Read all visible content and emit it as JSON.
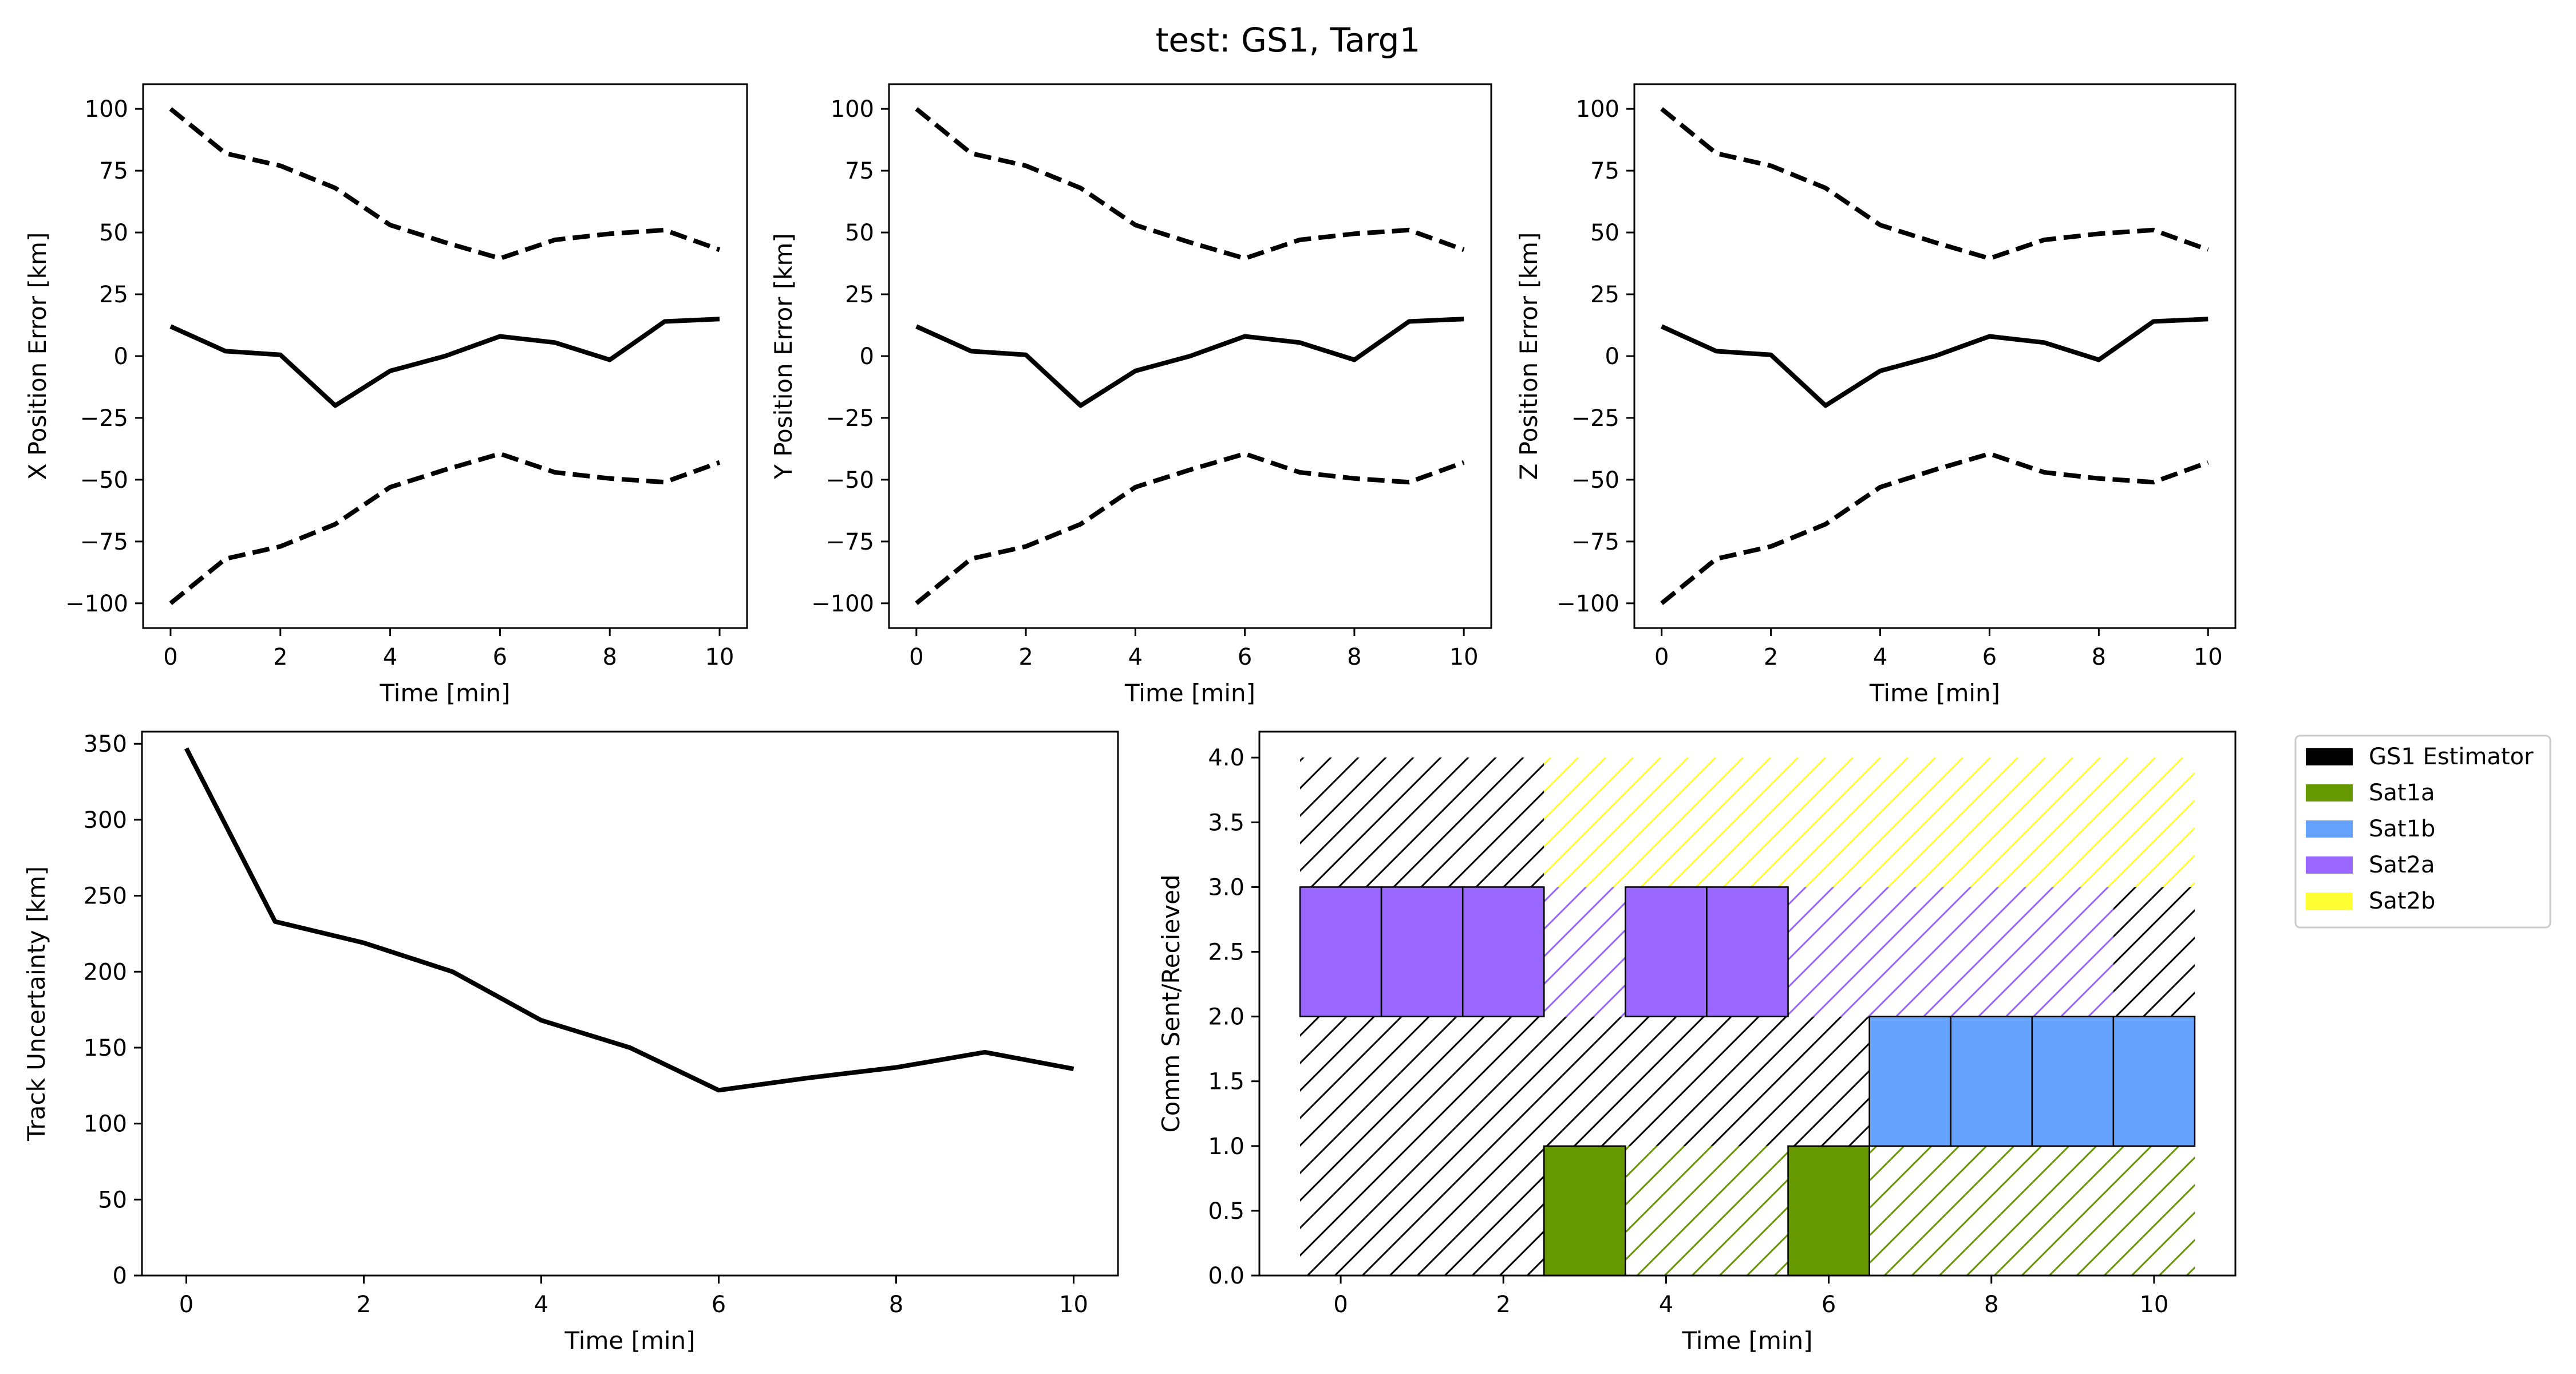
{
  "figure": {
    "suptitle": "test: GS1, Targ1"
  },
  "chart_data": [
    {
      "id": "x_error",
      "type": "line",
      "xlabel": "Time [min]",
      "ylabel": "X Position Error [km]",
      "xlim": [
        -0.5,
        10.5
      ],
      "ylim": [
        -110,
        110
      ],
      "xticks": [
        0,
        2,
        4,
        6,
        8,
        10
      ],
      "yticks": [
        -100,
        -75,
        -50,
        -25,
        0,
        25,
        50,
        75,
        100
      ],
      "x": [
        0,
        1,
        2,
        3,
        4,
        5,
        6,
        7,
        8,
        9,
        10
      ],
      "series": [
        {
          "role": "error",
          "style": "solid",
          "values": [
            12,
            2,
            0.5,
            -20,
            -6,
            0,
            8,
            5.5,
            -1.5,
            14,
            15
          ]
        },
        {
          "role": "upper-bound",
          "style": "dashed",
          "values": [
            100,
            82,
            77,
            68,
            53,
            46,
            39.5,
            47,
            49.5,
            51,
            43
          ]
        },
        {
          "role": "lower-bound",
          "style": "dashed",
          "values": [
            -100,
            -82,
            -77,
            -68,
            -53,
            -46,
            -39.5,
            -47,
            -49.5,
            -51,
            -43
          ]
        }
      ]
    },
    {
      "id": "y_error",
      "type": "line",
      "xlabel": "Time [min]",
      "ylabel": "Y Position Error [km]",
      "xlim": [
        -0.5,
        10.5
      ],
      "ylim": [
        -110,
        110
      ],
      "xticks": [
        0,
        2,
        4,
        6,
        8,
        10
      ],
      "yticks": [
        -100,
        -75,
        -50,
        -25,
        0,
        25,
        50,
        75,
        100
      ],
      "x": [
        0,
        1,
        2,
        3,
        4,
        5,
        6,
        7,
        8,
        9,
        10
      ],
      "series": [
        {
          "role": "error",
          "style": "solid",
          "values": [
            12,
            2,
            0.5,
            -20,
            -6,
            0,
            8,
            5.5,
            -1.5,
            14,
            15
          ]
        },
        {
          "role": "upper-bound",
          "style": "dashed",
          "values": [
            100,
            82,
            77,
            68,
            53,
            46,
            39.5,
            47,
            49.5,
            51,
            43
          ]
        },
        {
          "role": "lower-bound",
          "style": "dashed",
          "values": [
            -100,
            -82,
            -77,
            -68,
            -53,
            -46,
            -39.5,
            -47,
            -49.5,
            -51,
            -43
          ]
        }
      ]
    },
    {
      "id": "z_error",
      "type": "line",
      "xlabel": "Time [min]",
      "ylabel": "Z Position Error [km]",
      "xlim": [
        -0.5,
        10.5
      ],
      "ylim": [
        -110,
        110
      ],
      "xticks": [
        0,
        2,
        4,
        6,
        8,
        10
      ],
      "yticks": [
        -100,
        -75,
        -50,
        -25,
        0,
        25,
        50,
        75,
        100
      ],
      "x": [
        0,
        1,
        2,
        3,
        4,
        5,
        6,
        7,
        8,
        9,
        10
      ],
      "series": [
        {
          "role": "error",
          "style": "solid",
          "values": [
            12,
            2,
            0.5,
            -20,
            -6,
            0,
            8,
            5.5,
            -1.5,
            14,
            15
          ]
        },
        {
          "role": "upper-bound",
          "style": "dashed",
          "values": [
            100,
            82,
            77,
            68,
            53,
            46,
            39.5,
            47,
            49.5,
            51,
            43
          ]
        },
        {
          "role": "lower-bound",
          "style": "dashed",
          "values": [
            -100,
            -82,
            -77,
            -68,
            -53,
            -46,
            -39.5,
            -47,
            -49.5,
            -51,
            -43
          ]
        }
      ]
    },
    {
      "id": "track_uncertainty",
      "type": "line",
      "xlabel": "Time [min]",
      "ylabel": "Track Uncertainty [km]",
      "xlim": [
        -0.5,
        10.5
      ],
      "ylim": [
        0,
        358
      ],
      "xticks": [
        0,
        2,
        4,
        6,
        8,
        10
      ],
      "yticks": [
        0,
        50,
        100,
        150,
        200,
        250,
        300,
        350
      ],
      "x": [
        0,
        1,
        2,
        3,
        4,
        5,
        6,
        7,
        8,
        9,
        10
      ],
      "series": [
        {
          "role": "uncertainty",
          "style": "solid",
          "values": [
            347,
            233,
            219,
            200,
            168,
            150,
            122,
            130,
            137,
            147,
            136
          ]
        }
      ]
    },
    {
      "id": "comm",
      "type": "bar",
      "xlabel": "Time [min]",
      "ylabel": "Comm Sent/Recieved",
      "xlim": [
        -1,
        11
      ],
      "ylim": [
        0,
        4.2
      ],
      "xticks": [
        0,
        2,
        4,
        6,
        8,
        10
      ],
      "yticks": [
        0.0,
        0.5,
        1.0,
        1.5,
        2.0,
        2.5,
        3.0,
        3.5,
        4.0
      ],
      "legend": {
        "position": "outside-right",
        "entries": [
          {
            "name": "GS1 Estimator",
            "color": "#000000"
          },
          {
            "name": "Sat1a",
            "color": "#669900"
          },
          {
            "name": "Sat1b",
            "color": "#66a3ff"
          },
          {
            "name": "Sat2a",
            "color": "#9966ff"
          },
          {
            "name": "Sat2b",
            "color": "#ffff33"
          }
        ]
      },
      "hatched_regions": [
        {
          "source": "GS1 Estimator",
          "x": [
            -0.5,
            2.5
          ],
          "y": [
            0,
            4
          ]
        },
        {
          "source": "GS1 Estimator",
          "x": [
            2.5,
            6.5
          ],
          "y": [
            1,
            2
          ]
        },
        {
          "source": "GS1 Estimator",
          "x": [
            2.5,
            3.5
          ],
          "y": [
            0,
            1
          ]
        },
        {
          "source": "GS1 Estimator",
          "x": [
            9.5,
            10.5
          ],
          "y": [
            2,
            3
          ]
        },
        {
          "source": "Sat1a",
          "x": [
            3.5,
            5.5
          ],
          "y": [
            0,
            1
          ]
        },
        {
          "source": "Sat1a",
          "x": [
            6.5,
            10.5
          ],
          "y": [
            0,
            1
          ]
        },
        {
          "source": "Sat2a",
          "x": [
            2.5,
            3.5
          ],
          "y": [
            2,
            3
          ]
        },
        {
          "source": "Sat2a",
          "x": [
            5.5,
            9.5
          ],
          "y": [
            2,
            3
          ]
        },
        {
          "source": "Sat2b",
          "x": [
            2.5,
            10.5
          ],
          "y": [
            3,
            4
          ]
        }
      ],
      "bars": [
        {
          "source": "Sat2a",
          "x": 0,
          "y": [
            2,
            3
          ]
        },
        {
          "source": "Sat2a",
          "x": 1,
          "y": [
            2,
            3
          ]
        },
        {
          "source": "Sat2a",
          "x": 2,
          "y": [
            2,
            3
          ]
        },
        {
          "source": "Sat2a",
          "x": 4,
          "y": [
            2,
            3
          ]
        },
        {
          "source": "Sat2a",
          "x": 5,
          "y": [
            2,
            3
          ]
        },
        {
          "source": "Sat1a",
          "x": 3,
          "y": [
            0,
            1
          ]
        },
        {
          "source": "Sat1a",
          "x": 6,
          "y": [
            0,
            1
          ]
        },
        {
          "source": "Sat1b",
          "x": 7,
          "y": [
            1,
            2
          ]
        },
        {
          "source": "Sat1b",
          "x": 8,
          "y": [
            1,
            2
          ]
        },
        {
          "source": "Sat1b",
          "x": 9,
          "y": [
            1,
            2
          ]
        },
        {
          "source": "Sat1b",
          "x": 10,
          "y": [
            1,
            2
          ]
        }
      ]
    }
  ]
}
